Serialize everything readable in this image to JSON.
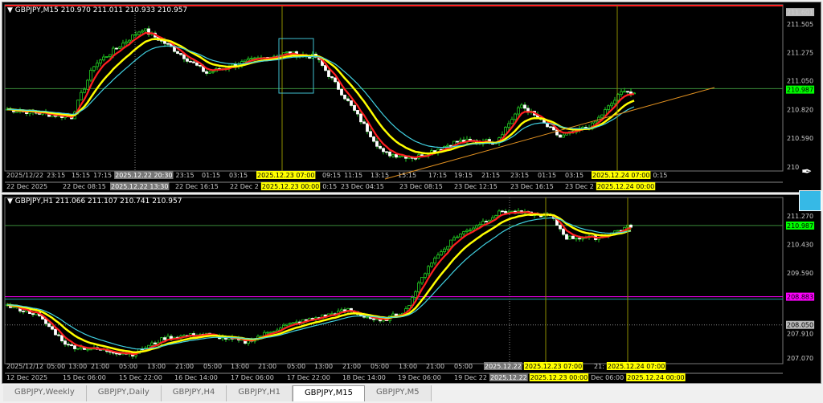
{
  "top_chart": {
    "header": "GBPJPY,M15  210.970 211.011 210.933 210.957",
    "price_ticks": [
      "211.601",
      "211.505",
      "211.275",
      "211.050",
      "210.820",
      "210.590",
      "210"
    ],
    "current_price": "210.987",
    "time_labels_upper": [
      "2025/12/22",
      "23:15",
      "15:15",
      "17:15",
      "23:15",
      "01:15",
      "03:15",
      "09:15",
      "11:15",
      "13:15",
      "15:15",
      "17:15",
      "19:15",
      "21:15",
      "23:15",
      "01:15",
      "03:15",
      "0:15"
    ],
    "time_labels_lower": [
      "22 Dec 2025",
      "22 Dec 08:15",
      "22 Dec 16:15",
      "22 Dec 2",
      "0:15",
      "23 Dec 04:15",
      "23 Dec 08:15",
      "23 Dec 12:15",
      "23 Dec 16:15",
      "23 Dec 2"
    ],
    "crosshair_labels": {
      "gray1": "2025.12.22 20:30",
      "gray2": "2025.12.22 13:30",
      "yellow1": "2025.12.23 07:00",
      "yellow2": "2025.12.23 00:00",
      "yellow3": "2025.12.24 07:00",
      "yellow4": "2025.12.24 00:00"
    },
    "price_path": [
      [
        0,
        210.822
      ],
      [
        20,
        210.758
      ],
      [
        27,
        211.176
      ],
      [
        42,
        211.466
      ],
      [
        50,
        211.337
      ],
      [
        62,
        211.112
      ],
      [
        75,
        211.209
      ],
      [
        87,
        211.273
      ],
      [
        96,
        211.241
      ],
      [
        105,
        210.919
      ],
      [
        117,
        210.468
      ],
      [
        127,
        210.435
      ],
      [
        140,
        210.564
      ],
      [
        152,
        210.564
      ],
      [
        160,
        210.854
      ],
      [
        172,
        210.597
      ],
      [
        182,
        210.693
      ],
      [
        192,
        210.983
      ],
      [
        195,
        210.932
      ]
    ]
  },
  "bottom_chart": {
    "header": "GBPJPY,H1  211.066 211.107 210.741 210.957",
    "price_ticks": [
      "211.270",
      "210.430",
      "209.590",
      "207.910",
      "207.070"
    ],
    "current_price": "210.987",
    "line_price_magenta": "208.883",
    "line_price_dotted": "208.050",
    "time_labels_upper": [
      "2025/12/12",
      "05:00",
      "13:00",
      "21:00",
      "05:00",
      "13:00",
      "21:00",
      "05:00",
      "13:00",
      "21:00",
      "05:00",
      "13:00",
      "21:00",
      "05:00",
      "13:00",
      "21:00",
      "05:00",
      "21:"
    ],
    "time_labels_lower": [
      "12 Dec 2025",
      "15 Dec 06:00",
      "15 Dec 22:00",
      "16 Dec 14:00",
      "17 Dec 06:00",
      "17 Dec 22:00",
      "18 Dec 14:00",
      "19 Dec 06:00",
      "19 Dec 22",
      "Dec 06:00"
    ],
    "crosshair_labels": {
      "gray1": "2025.12.22",
      "gray2": "2025.12.22",
      "yellow1": "2025.12.23 07:00",
      "yellow2": "2025.12.23 00:00",
      "yellow3": "2025.12.24 07:00",
      "yellow4": "2025.12.24 00:00"
    },
    "price_path": [
      [
        0,
        208.612
      ],
      [
        9,
        208.375
      ],
      [
        19,
        207.426
      ],
      [
        39,
        207.188
      ],
      [
        49,
        207.663
      ],
      [
        61,
        207.782
      ],
      [
        74,
        207.544
      ],
      [
        86,
        208.019
      ],
      [
        106,
        208.494
      ],
      [
        116,
        208.138
      ],
      [
        124,
        208.494
      ],
      [
        131,
        209.799
      ],
      [
        139,
        210.629
      ],
      [
        154,
        211.412
      ],
      [
        169,
        211.27
      ],
      [
        174,
        210.629
      ],
      [
        184,
        210.629
      ],
      [
        194,
        210.985
      ]
    ]
  },
  "colors": {
    "bull": "#22cc22",
    "bear": "#ffffff",
    "ma_fast": "#ff2020",
    "ma_mid": "#ffff00",
    "ma_slow": "#40d0e0",
    "vline": "#8b8b00",
    "trend": "#e09020",
    "current": "#00ff00",
    "magenta": "#ff00ff"
  },
  "tabs": [
    "GBPJPY,Weekly",
    "GBPJPY,Daily",
    "GBPJPY,H4",
    "GBPJPY,H1",
    "GBPJPY,M15",
    "GBPJPY,M5"
  ],
  "active_tab": "GBPJPY,M15"
}
